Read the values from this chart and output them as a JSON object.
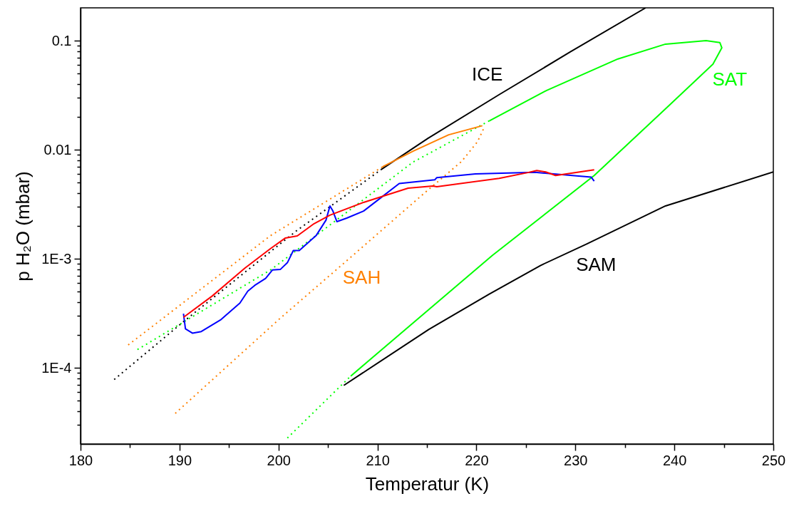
{
  "chart_data": {
    "type": "line",
    "xlabel": "Temperatur (K)",
    "ylabel": "p H₂O (mbar)",
    "log": true,
    "grid": false,
    "xlim": [
      180,
      250
    ],
    "xticks": [
      180,
      {
        "value": 185,
        "label": null
      },
      190,
      {
        "value": 195,
        "label": null
      },
      200,
      {
        "value": 205,
        "label": null
      },
      210,
      {
        "value": 215,
        "label": null
      },
      220,
      {
        "value": 225,
        "label": null
      },
      230,
      {
        "value": 235,
        "label": null
      },
      240,
      {
        "value": 245,
        "label": null
      },
      250
    ],
    "ylim": [
      2e-05,
      0.2
    ],
    "yticks": [
      {
        "value": 3e-05,
        "label": null
      },
      {
        "value": 4e-05,
        "label": null
      },
      {
        "value": 5e-05,
        "label": null
      },
      {
        "value": 6e-05,
        "label": null
      },
      {
        "value": 7e-05,
        "label": null
      },
      {
        "value": 8e-05,
        "label": null
      },
      {
        "value": 9e-05,
        "label": null
      },
      {
        "value": 0.0001,
        "label": "1E-4"
      },
      {
        "value": 0.0002,
        "label": null
      },
      {
        "value": 0.0003,
        "label": null
      },
      {
        "value": 0.0004,
        "label": null
      },
      {
        "value": 0.0005,
        "label": null
      },
      {
        "value": 0.0006,
        "label": null
      },
      {
        "value": 0.0007,
        "label": null
      },
      {
        "value": 0.0008,
        "label": null
      },
      {
        "value": 0.0009,
        "label": null
      },
      {
        "value": 0.001,
        "label": "1E-3"
      },
      {
        "value": 0.002,
        "label": null
      },
      {
        "value": 0.003,
        "label": null
      },
      {
        "value": 0.004,
        "label": null
      },
      {
        "value": 0.005,
        "label": null
      },
      {
        "value": 0.006,
        "label": null
      },
      {
        "value": 0.007,
        "label": null
      },
      {
        "value": 0.008,
        "label": null
      },
      {
        "value": 0.009,
        "label": null
      },
      0.01,
      {
        "value": 0.02,
        "label": null
      },
      {
        "value": 0.03,
        "label": null
      },
      {
        "value": 0.04,
        "label": null
      },
      {
        "value": 0.05,
        "label": null
      },
      {
        "value": 0.06,
        "label": null
      },
      {
        "value": 0.07,
        "label": null
      },
      {
        "value": 0.08,
        "label": null
      },
      {
        "value": 0.09,
        "label": null
      },
      0.1
    ],
    "series": [
      {
        "type": "line",
        "color": "#000000",
        "line_style": "dotted",
        "x": [
          183.4,
          190.4,
          201.8,
          205.7,
          210.4
        ],
        "values": [
          7.8e-05,
          0.000265,
          0.0018,
          0.00324,
          0.0066
        ]
      },
      {
        "name": "ICE",
        "color": "#000000",
        "line_style": "solid",
        "x": [
          210.4,
          215.1,
          222.3,
          229.5,
          237.1
        ],
        "values": [
          0.0066,
          0.0127,
          0.032,
          0.079,
          0.2
        ]
      },
      {
        "type": "line",
        "color": "#00ff00",
        "line_style": "dotted",
        "x": [
          200.9,
          207.3
        ],
        "values": [
          2.27e-05,
          8.4e-05
        ]
      },
      {
        "name": "SAT",
        "color": "#00ff00",
        "line_style": "solid",
        "x": [
          207.3,
          221.6,
          231.9,
          239.1,
          243.9,
          244.8,
          244.6,
          243.2,
          239.1,
          234.3,
          227.1,
          221.3
        ],
        "values": [
          8.4e-05,
          0.00107,
          0.0058,
          0.0237,
          0.061,
          0.086,
          0.096,
          0.1,
          0.093,
          0.068,
          0.035,
          0.0184
        ]
      },
      {
        "type": "line",
        "color": "#00ff00",
        "line_style": "dotted",
        "x": [
          221.3,
          213.6,
          199.2,
          185.7
        ],
        "values": [
          0.0184,
          0.0077,
          0.00079,
          0.000146
        ]
      },
      {
        "type": "line",
        "color": "#ff8000",
        "line_style": "solid",
        "x": [
          210.5,
          213.6,
          217.2,
          220.6
        ],
        "values": [
          0.00695,
          0.0097,
          0.0137,
          0.0166
        ]
      },
      {
        "type": "line",
        "color": "#ff8000",
        "line_style": "dotted",
        "x": [
          210.5,
          199.2,
          184.7
        ],
        "values": [
          0.00695,
          0.00163,
          0.000159
        ]
      },
      {
        "name": "SAH",
        "color": "#ff8000",
        "line_style": "dotted",
        "x": [
          220.7,
          220.1,
          218.5,
          214.6,
          206.9,
          200.2,
          189.4
        ],
        "values": [
          0.0154,
          0.0118,
          0.0078,
          0.0039,
          0.00096,
          0.000286,
          3.7e-05
        ]
      },
      {
        "name": "SAM",
        "color": "#000000",
        "line_style": "solid",
        "x": [
          206.6,
          215.2,
          221.3,
          226.5,
          231.1,
          239.1,
          250
        ],
        "values": [
          6.9e-05,
          0.000225,
          0.000475,
          0.00087,
          0.00136,
          0.00305,
          0.00625
        ]
      },
      {
        "type": "line",
        "color": "#0000ff",
        "line_style": "solid",
        "x": [
          190.4,
          190.6,
          191.3,
          192.2,
          194.2,
          196.1,
          196.9,
          197.6,
          198.7,
          199.4,
          200.2,
          200.9,
          201.5,
          202.1,
          203.8,
          204.8,
          205.2,
          205.5,
          205.9,
          206.9,
          208.6,
          210.0,
          212.2,
          215.8,
          216.0,
          219.9,
          225.9,
          231.6,
          231.9
        ],
        "values": [
          0.000313,
          0.000228,
          0.000208,
          0.000215,
          0.000277,
          0.000392,
          0.000505,
          0.00057,
          0.00066,
          0.00079,
          0.0008,
          0.00092,
          0.00119,
          0.00119,
          0.00163,
          0.00226,
          0.00305,
          0.00274,
          0.00219,
          0.00236,
          0.00274,
          0.00343,
          0.0049,
          0.0053,
          0.00555,
          0.006,
          0.0062,
          0.0056,
          0.00515
        ]
      },
      {
        "type": "line",
        "color": "#ff0000",
        "line_style": "solid",
        "x": [
          190.4,
          193.3,
          196.6,
          199.2,
          200.7,
          201.9,
          203.6,
          205.2,
          208.6,
          213.1,
          215.6,
          216.0,
          222.3,
          225.2,
          226.1,
          227.0,
          228.0,
          231.9
        ],
        "values": [
          0.00029,
          0.000455,
          0.00082,
          0.00124,
          0.00155,
          0.00162,
          0.0021,
          0.00251,
          0.00329,
          0.00444,
          0.00464,
          0.00457,
          0.00547,
          0.00617,
          0.00645,
          0.00625,
          0.0058,
          0.00655
        ]
      }
    ]
  }
}
